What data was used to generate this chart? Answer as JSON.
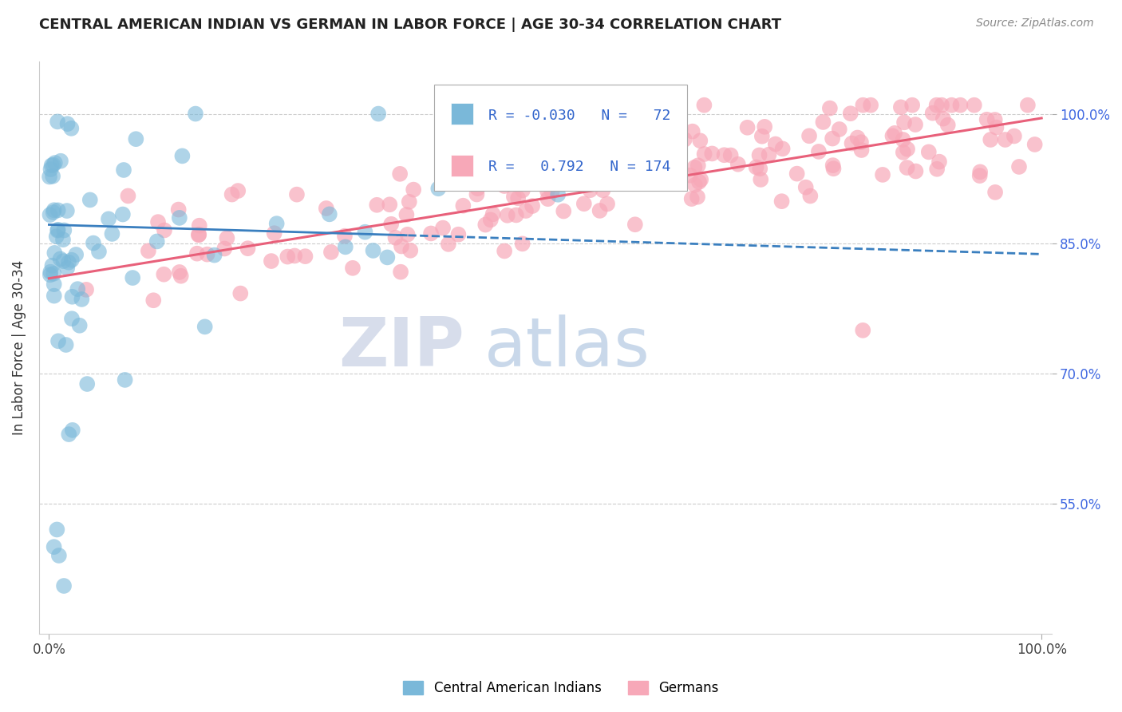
{
  "title": "CENTRAL AMERICAN INDIAN VS GERMAN IN LABOR FORCE | AGE 30-34 CORRELATION CHART",
  "source": "Source: ZipAtlas.com",
  "ylabel": "In Labor Force | Age 30-34",
  "xlim": [
    -0.01,
    1.01
  ],
  "ylim": [
    0.4,
    1.06
  ],
  "xticks": [
    0.0,
    1.0
  ],
  "xticklabels": [
    "0.0%",
    "100.0%"
  ],
  "ytick_positions": [
    0.55,
    0.7,
    0.85,
    1.0
  ],
  "ytick_labels": [
    "55.0%",
    "70.0%",
    "85.0%",
    "100.0%"
  ],
  "blue_color": "#7ab8d9",
  "pink_color": "#f7a8b8",
  "blue_line_color": "#3a7fbf",
  "pink_line_color": "#e8607a",
  "watermark_zip": "ZIP",
  "watermark_atlas": "atlas",
  "legend_r_blue": "-0.030",
  "legend_n_blue": "72",
  "legend_r_pink": "0.792",
  "legend_n_pink": "174",
  "legend_label_blue": "Central American Indians",
  "legend_label_pink": "Germans",
  "blue_line_start_x": 0.0,
  "blue_line_start_y": 0.872,
  "blue_line_end_x": 1.0,
  "blue_line_end_y": 0.838,
  "pink_line_start_x": 0.0,
  "pink_line_start_y": 0.81,
  "pink_line_end_x": 1.0,
  "pink_line_end_y": 0.995
}
